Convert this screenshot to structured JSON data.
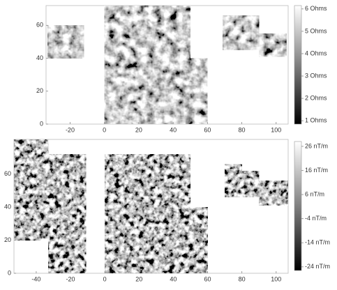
{
  "chart_data": [
    {
      "type": "image",
      "xlim": [
        -34,
        107
      ],
      "ylim": [
        0,
        72
      ],
      "xticks": [
        -20,
        0,
        20,
        40,
        60,
        80,
        100
      ],
      "yticks": [
        0,
        20,
        40,
        60
      ],
      "blocks": [
        [
          -33,
          40,
          -12,
          60
        ],
        [
          0,
          0,
          60,
          40
        ],
        [
          0,
          40,
          50,
          72
        ],
        [
          69,
          45,
          90,
          66
        ],
        [
          90,
          41,
          106,
          55
        ]
      ],
      "colorbar": {
        "clim": [
          0.85,
          6.15
        ],
        "ticks": [
          {
            "value": 6,
            "label": "6 Ohms"
          },
          {
            "value": 5,
            "label": "5 Ohms"
          },
          {
            "value": 4,
            "label": "4 Ohms"
          },
          {
            "value": 3,
            "label": "3 Ohms"
          },
          {
            "value": 2,
            "label": "2 Ohms"
          },
          {
            "value": 1,
            "label": "1 Ohms"
          }
        ]
      }
    },
    {
      "type": "image",
      "xlim": [
        -53,
        107
      ],
      "ylim": [
        0,
        81
      ],
      "xticks": [
        -40,
        -20,
        0,
        20,
        40,
        60,
        80,
        100
      ],
      "yticks": [
        0,
        20,
        40,
        60
      ],
      "blocks": [
        [
          -53,
          20,
          -33,
          81
        ],
        [
          -33,
          0,
          -11,
          72
        ],
        [
          0,
          0,
          50,
          72
        ],
        [
          50,
          0,
          60,
          40
        ],
        [
          70,
          46,
          80,
          66
        ],
        [
          80,
          46,
          90,
          62
        ],
        [
          90,
          41,
          107,
          56
        ]
      ],
      "colorbar": {
        "clim": [
          -25.5,
          28
        ],
        "ticks": [
          {
            "value": 26,
            "label": "26 nT/m"
          },
          {
            "value": 16,
            "label": "16 nT/m"
          },
          {
            "value": 6,
            "label": "6 nT/m"
          },
          {
            "value": -4,
            "label": "-4 nT/m"
          },
          {
            "value": -14,
            "label": "-14 nT/m"
          },
          {
            "value": -24,
            "label": "-24 nT/m"
          }
        ]
      }
    }
  ]
}
